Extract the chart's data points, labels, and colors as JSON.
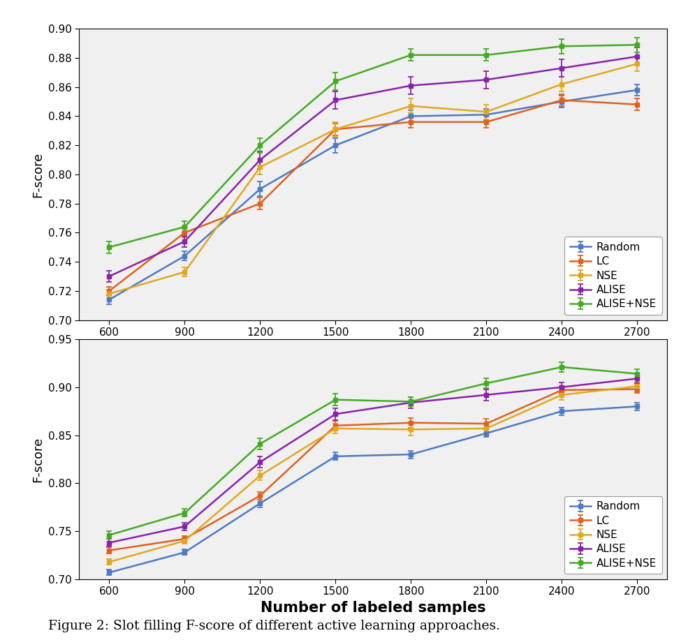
{
  "x": [
    600,
    900,
    1200,
    1500,
    1800,
    2100,
    2400,
    2700
  ],
  "subplot1": {
    "Random": {
      "y": [
        0.714,
        0.744,
        0.79,
        0.82,
        0.84,
        0.841,
        0.85,
        0.858
      ],
      "yerr": [
        0.003,
        0.003,
        0.005,
        0.005,
        0.004,
        0.004,
        0.004,
        0.004
      ]
    },
    "LC": {
      "y": [
        0.72,
        0.76,
        0.78,
        0.831,
        0.836,
        0.836,
        0.851,
        0.848
      ],
      "yerr": [
        0.003,
        0.003,
        0.004,
        0.004,
        0.004,
        0.004,
        0.004,
        0.004
      ]
    },
    "NSE": {
      "y": [
        0.718,
        0.733,
        0.805,
        0.831,
        0.847,
        0.843,
        0.862,
        0.876
      ],
      "yerr": [
        0.003,
        0.003,
        0.005,
        0.005,
        0.005,
        0.005,
        0.005,
        0.005
      ]
    },
    "ALISE": {
      "y": [
        0.73,
        0.754,
        0.81,
        0.851,
        0.861,
        0.865,
        0.873,
        0.881
      ],
      "yerr": [
        0.004,
        0.004,
        0.006,
        0.006,
        0.006,
        0.006,
        0.006,
        0.006
      ]
    },
    "ALISE+NSE": {
      "y": [
        0.75,
        0.764,
        0.82,
        0.864,
        0.882,
        0.882,
        0.888,
        0.889
      ],
      "yerr": [
        0.004,
        0.004,
        0.005,
        0.006,
        0.004,
        0.004,
        0.005,
        0.005
      ]
    }
  },
  "subplot2": {
    "Random": {
      "y": [
        0.707,
        0.728,
        0.779,
        0.828,
        0.83,
        0.852,
        0.875,
        0.88
      ],
      "yerr": [
        0.003,
        0.003,
        0.004,
        0.004,
        0.004,
        0.004,
        0.004,
        0.004
      ]
    },
    "LC": {
      "y": [
        0.73,
        0.742,
        0.787,
        0.86,
        0.863,
        0.862,
        0.897,
        0.898
      ],
      "yerr": [
        0.003,
        0.003,
        0.004,
        0.005,
        0.005,
        0.005,
        0.004,
        0.004
      ]
    },
    "NSE": {
      "y": [
        0.718,
        0.74,
        0.808,
        0.857,
        0.856,
        0.857,
        0.892,
        0.901
      ],
      "yerr": [
        0.003,
        0.003,
        0.005,
        0.005,
        0.006,
        0.005,
        0.005,
        0.005
      ]
    },
    "ALISE": {
      "y": [
        0.738,
        0.755,
        0.822,
        0.872,
        0.884,
        0.892,
        0.9,
        0.909
      ],
      "yerr": [
        0.004,
        0.004,
        0.006,
        0.006,
        0.006,
        0.006,
        0.005,
        0.005
      ]
    },
    "ALISE+NSE": {
      "y": [
        0.746,
        0.769,
        0.841,
        0.887,
        0.885,
        0.904,
        0.921,
        0.914
      ],
      "yerr": [
        0.004,
        0.004,
        0.006,
        0.006,
        0.005,
        0.005,
        0.005,
        0.005
      ]
    }
  },
  "colors": {
    "Random": "#4E79C4",
    "LC": "#E06020",
    "NSE": "#E0A820",
    "ALISE": "#8822AA",
    "ALISE+NSE": "#44AA22"
  },
  "subplot1_ylim": [
    0.7,
    0.9
  ],
  "subplot1_yticks": [
    0.7,
    0.72,
    0.74,
    0.76,
    0.78,
    0.8,
    0.82,
    0.84,
    0.86,
    0.88,
    0.9
  ],
  "subplot2_ylim": [
    0.7,
    0.95
  ],
  "subplot2_yticks": [
    0.7,
    0.75,
    0.8,
    0.85,
    0.9,
    0.95
  ],
  "xlabel": "Number of labeled samples",
  "ylabel": "F-score",
  "caption": "Figure 2: Slot filling F-score of different active learning approaches.",
  "series_order": [
    "Random",
    "LC",
    "NSE",
    "ALISE",
    "ALISE+NSE"
  ],
  "bg_color": "#F0F0F0"
}
